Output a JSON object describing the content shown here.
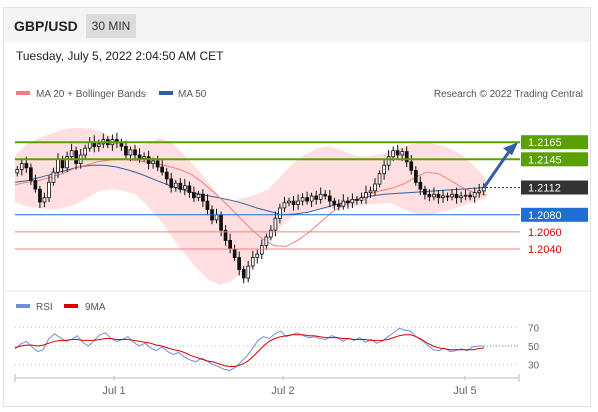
{
  "header": {
    "symbol": "GBP/USD",
    "timeframe": "30 MIN",
    "timestamp": "Tuesday, July 5, 2022 2:04:50 AM CET"
  },
  "legend": {
    "ma20": "MA 20 + Bollinger Bands",
    "ma50": "MA 50",
    "credit": "Research © 2022 Trading Central"
  },
  "rsi_legend": {
    "rsi": "RSI",
    "ma": "9MA"
  },
  "colors": {
    "candle": "#111111",
    "bollinger_fill": "#ffd9d9",
    "ma20": "#f08080",
    "ma50": "#2f5f9e",
    "resistance": "#5aa000",
    "support_strong": "#1f6fd0",
    "support": "#f08080",
    "last": "#333333",
    "rsi": "#6f8fd8",
    "rsi_ma": "#dd0000"
  },
  "chart_data": [
    {
      "type": "candlestick",
      "title": "GBP/USD 30 MIN",
      "y_range": [
        1.1992,
        1.2205
      ],
      "x_labels": [
        "Jul 1",
        "Jul 2",
        "Jul 5"
      ],
      "closes": [
        1.2133,
        1.214,
        1.2135,
        1.212,
        1.211,
        1.2095,
        1.21,
        1.2118,
        1.213,
        1.2145,
        1.2135,
        1.2148,
        1.2155,
        1.214,
        1.215,
        1.2158,
        1.2165,
        1.216,
        1.2163,
        1.2168,
        1.2162,
        1.2168,
        1.2164,
        1.216,
        1.215,
        1.2156,
        1.215,
        1.2146,
        1.2148,
        1.214,
        1.2143,
        1.2136,
        1.213,
        1.2122,
        1.2112,
        1.2117,
        1.211,
        1.2114,
        1.2106,
        1.21,
        1.2104,
        1.2096,
        1.2086,
        1.2074,
        1.208,
        1.2062,
        1.205,
        1.204,
        1.203,
        1.2016,
        1.2006,
        1.202,
        1.203,
        1.2034,
        1.2044,
        1.2054,
        1.2062,
        1.2076,
        1.2088,
        1.2094,
        1.2096,
        1.2092,
        1.2096,
        1.21,
        1.2096,
        1.2102,
        1.2098,
        1.2104,
        1.2102,
        1.2096,
        1.2092,
        1.209,
        1.2096,
        1.2094,
        1.2098,
        1.2097,
        1.21,
        1.2106,
        1.2108,
        1.2116,
        1.2128,
        1.2138,
        1.2148,
        1.2155,
        1.215,
        1.2154,
        1.2142,
        1.2132,
        1.2118,
        1.211,
        1.2104,
        1.2101,
        1.2104,
        1.21,
        1.2102,
        1.2101,
        1.2104,
        1.21,
        1.2102,
        1.2103,
        1.2101,
        1.2106,
        1.2108,
        1.2112
      ],
      "ma20": [
        1.2115,
        1.2118,
        1.212,
        1.2124,
        1.2128,
        1.2134,
        1.2138,
        1.2142,
        1.2144,
        1.2145,
        1.2144,
        1.2142,
        1.214,
        1.2137,
        1.2133,
        1.2127,
        1.2117,
        1.2105,
        1.2092,
        1.2078,
        1.2064,
        1.2052,
        1.2044,
        1.2043,
        1.205,
        1.206,
        1.2072,
        1.2084,
        1.2092,
        1.2098,
        1.2104,
        1.2108,
        1.2111,
        1.2116,
        1.2124,
        1.213,
        1.2128,
        1.212,
        1.2112,
        1.2106,
        1.2103
      ],
      "ma50": [
        1.2118,
        1.212,
        1.2124,
        1.2128,
        1.2132,
        1.2136,
        1.2138,
        1.2138,
        1.2136,
        1.2132,
        1.2127,
        1.2121,
        1.2115,
        1.211,
        1.2106,
        1.2103,
        1.21,
        1.2097,
        1.2093,
        1.2088,
        1.2084,
        1.208,
        1.2081,
        1.2083,
        1.2087,
        1.2091,
        1.2095,
        1.2099,
        1.2102,
        1.2104,
        1.2105,
        1.2106,
        1.2107,
        1.2108,
        1.2109,
        1.211,
        1.2111,
        1.2112
      ],
      "bb_upper": [
        1.215,
        1.2163,
        1.217,
        1.2175,
        1.218,
        1.2182,
        1.2181,
        1.2178,
        1.2172,
        1.2166,
        1.216,
        1.2164,
        1.217,
        1.2165,
        1.215,
        1.2135,
        1.2118,
        1.21,
        1.2096,
        1.21,
        1.2104,
        1.211,
        1.2125,
        1.214,
        1.215,
        1.2158,
        1.216,
        1.2156,
        1.215,
        1.2148,
        1.215,
        1.2154,
        1.216,
        1.2163,
        1.2165,
        1.2162,
        1.2158,
        1.215,
        1.2138,
        1.2122
      ],
      "bb_lower": [
        1.2095,
        1.209,
        1.2088,
        1.2086,
        1.2088,
        1.2092,
        1.21,
        1.2108,
        1.211,
        1.2108,
        1.2104,
        1.209,
        1.2074,
        1.2054,
        1.2035,
        1.2018,
        1.2004,
        1.1998,
        1.2003,
        1.2016,
        1.2034,
        1.2052,
        1.2066,
        1.2078,
        1.2084,
        1.2086,
        1.2087,
        1.2088,
        1.209,
        1.2092,
        1.2093,
        1.2094,
        1.2088,
        1.2082,
        1.208,
        1.2082,
        1.2086,
        1.209,
        1.2095,
        1.21
      ],
      "levels": [
        {
          "value": "1.2165",
          "kind": "resistance"
        },
        {
          "value": "1.2145",
          "kind": "resistance"
        },
        {
          "value": "1.2112",
          "kind": "last"
        },
        {
          "value": "1.2080",
          "kind": "support_strong"
        },
        {
          "value": "1.2060",
          "kind": "support"
        },
        {
          "value": "1.2040",
          "kind": "support"
        }
      ],
      "projection": "upward arrow from 1.2112 to 1.2165"
    },
    {
      "type": "line",
      "title": "RSI",
      "y_range": [
        20,
        80
      ],
      "y_ticks": [
        "70",
        "50",
        "30"
      ],
      "series": [
        {
          "name": "RSI",
          "values": [
            47,
            52,
            55,
            49,
            44,
            46,
            58,
            63,
            59,
            55,
            57,
            61,
            54,
            50,
            56,
            62,
            64,
            58,
            55,
            57,
            60,
            54,
            50,
            53,
            48,
            45,
            49,
            44,
            41,
            43,
            38,
            35,
            33,
            37,
            34,
            30,
            28,
            25,
            24,
            27,
            33,
            39,
            47,
            56,
            60,
            58,
            63,
            66,
            60,
            62,
            64,
            61,
            59,
            60,
            58,
            57,
            61,
            59,
            55,
            58,
            56,
            59,
            54,
            57,
            53,
            55,
            60,
            64,
            69,
            67,
            66,
            60,
            56,
            51,
            46,
            45,
            48,
            44,
            45,
            47,
            45,
            49,
            50,
            50
          ]
        },
        {
          "name": "9MA",
          "values": [
            48,
            50,
            51,
            51,
            50,
            51,
            53,
            55,
            56,
            56,
            57,
            57,
            56,
            56,
            56,
            57,
            58,
            58,
            57,
            57,
            57,
            56,
            55,
            54,
            53,
            51,
            50,
            48,
            46,
            45,
            43,
            40,
            38,
            36,
            34,
            33,
            31,
            29,
            28,
            28,
            30,
            33,
            38,
            44,
            50,
            55,
            58,
            60,
            61,
            62,
            62,
            62,
            61,
            61,
            60,
            59,
            59,
            59,
            58,
            58,
            57,
            57,
            57,
            56,
            56,
            56,
            57,
            59,
            61,
            62,
            62,
            60,
            57,
            53,
            50,
            48,
            47,
            46,
            46,
            46,
            46,
            46,
            47,
            48
          ]
        }
      ]
    }
  ]
}
